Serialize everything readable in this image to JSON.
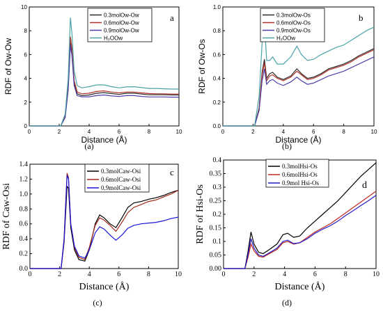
{
  "captions": [
    "(a)",
    "(b)",
    "(c)",
    "(d)"
  ],
  "chart_data": [
    {
      "type": "line",
      "panel_letter": "a",
      "xlabel": "Distance (Å)",
      "ylabel": "RDF of Ow-Ow",
      "xlim": [
        0,
        10
      ],
      "ylim": [
        0,
        10
      ],
      "xticks": [
        0,
        2,
        4,
        6,
        8,
        10
      ],
      "yticks": [
        0,
        2,
        4,
        6,
        8,
        10
      ],
      "legend_position": "top-right",
      "series": [
        {
          "name": "0.3molOw-Ow",
          "color": "#2b2b2b",
          "x": [
            0,
            2.1,
            2.4,
            2.6,
            2.75,
            2.85,
            3.0,
            3.2,
            3.5,
            4.0,
            4.5,
            5.0,
            5.5,
            6.0,
            6.5,
            7.0,
            7.5,
            8.0,
            8.5,
            9.0,
            9.5,
            10
          ],
          "y": [
            0,
            0,
            0.8,
            3.2,
            7.0,
            6.2,
            3.6,
            2.7,
            2.55,
            2.6,
            2.75,
            2.8,
            2.72,
            2.65,
            2.75,
            2.75,
            2.68,
            2.62,
            2.62,
            2.62,
            2.6,
            2.6
          ]
        },
        {
          "name": "0.6molOw-Ow",
          "color": "#b03028",
          "x": [
            0,
            2.1,
            2.4,
            2.6,
            2.75,
            2.85,
            3.0,
            3.2,
            3.5,
            4.0,
            4.5,
            5.0,
            5.5,
            6.0,
            6.5,
            7.0,
            7.5,
            8.0,
            8.5,
            9.0,
            9.5,
            10
          ],
          "y": [
            0,
            0,
            0.8,
            3.4,
            7.5,
            6.5,
            3.8,
            2.85,
            2.7,
            2.75,
            2.9,
            2.95,
            2.85,
            2.78,
            2.85,
            2.85,
            2.78,
            2.72,
            2.7,
            2.7,
            2.68,
            2.68
          ]
        },
        {
          "name": "0.9molOw-Ow",
          "color": "#4a3fa8",
          "x": [
            0,
            2.1,
            2.4,
            2.6,
            2.75,
            2.85,
            3.0,
            3.2,
            3.5,
            4.0,
            4.5,
            5.0,
            5.5,
            6.0,
            6.5,
            7.0,
            7.5,
            8.0,
            8.5,
            9.0,
            9.5,
            10
          ],
          "y": [
            0,
            0,
            0.7,
            3.0,
            6.8,
            5.9,
            3.4,
            2.55,
            2.45,
            2.45,
            2.55,
            2.6,
            2.52,
            2.48,
            2.55,
            2.55,
            2.48,
            2.44,
            2.44,
            2.44,
            2.42,
            2.42
          ]
        },
        {
          "name": "H₂OOw",
          "color": "#4aa3a6",
          "x": [
            0,
            2.1,
            2.4,
            2.6,
            2.75,
            2.85,
            3.0,
            3.2,
            3.5,
            4.0,
            4.5,
            5.0,
            5.5,
            6.0,
            6.5,
            7.0,
            7.5,
            8.0,
            8.5,
            9.0,
            9.5,
            10
          ],
          "y": [
            0,
            0,
            1.0,
            4.0,
            9.1,
            7.8,
            4.6,
            3.4,
            3.2,
            3.3,
            3.45,
            3.45,
            3.3,
            3.2,
            3.28,
            3.3,
            3.22,
            3.15,
            3.15,
            3.12,
            3.1,
            3.1
          ]
        }
      ]
    },
    {
      "type": "line",
      "panel_letter": "b",
      "xlabel": "Distance (Å)",
      "ylabel": "RDF of Ow-Os",
      "xlim": [
        0,
        10
      ],
      "ylim": [
        0,
        1.0
      ],
      "xticks": [
        0,
        2,
        4,
        6,
        8,
        10
      ],
      "yticks": [
        0,
        0.2,
        0.4,
        0.6,
        0.8,
        1.0
      ],
      "legend_position": "top-left",
      "series": [
        {
          "name": "0.3molOw-Os",
          "color": "#2b2b2b",
          "x": [
            0,
            2.1,
            2.4,
            2.6,
            2.75,
            2.9,
            3.1,
            3.3,
            3.6,
            4.0,
            4.5,
            4.9,
            5.2,
            5.6,
            6.0,
            6.5,
            7.0,
            7.5,
            8.0,
            8.5,
            9.0,
            9.5,
            10
          ],
          "y": [
            0,
            0,
            0.15,
            0.45,
            0.56,
            0.4,
            0.44,
            0.45,
            0.41,
            0.39,
            0.42,
            0.48,
            0.44,
            0.4,
            0.41,
            0.44,
            0.48,
            0.5,
            0.52,
            0.55,
            0.59,
            0.62,
            0.65
          ]
        },
        {
          "name": "0.6molOw-Os",
          "color": "#b03028",
          "x": [
            0,
            2.1,
            2.4,
            2.6,
            2.75,
            2.9,
            3.1,
            3.3,
            3.6,
            4.0,
            4.5,
            4.9,
            5.2,
            5.6,
            6.0,
            6.5,
            7.0,
            7.5,
            8.0,
            8.5,
            9.0,
            9.5,
            10
          ],
          "y": [
            0,
            0,
            0.14,
            0.43,
            0.53,
            0.38,
            0.42,
            0.43,
            0.4,
            0.38,
            0.41,
            0.46,
            0.43,
            0.39,
            0.4,
            0.43,
            0.47,
            0.49,
            0.51,
            0.54,
            0.58,
            0.61,
            0.64
          ]
        },
        {
          "name": "0.9molOw-Os",
          "color": "#4a3fa8",
          "x": [
            0,
            2.1,
            2.4,
            2.6,
            2.75,
            2.9,
            3.1,
            3.3,
            3.6,
            4.0,
            4.5,
            4.9,
            5.2,
            5.6,
            6.0,
            6.5,
            7.0,
            7.5,
            8.0,
            8.5,
            9.0,
            9.5,
            10
          ],
          "y": [
            0,
            0,
            0.13,
            0.38,
            0.48,
            0.35,
            0.38,
            0.39,
            0.36,
            0.34,
            0.37,
            0.41,
            0.38,
            0.35,
            0.36,
            0.39,
            0.42,
            0.44,
            0.46,
            0.49,
            0.52,
            0.55,
            0.58
          ]
        },
        {
          "name": "H₂OOw",
          "color": "#4aa3a6",
          "x": [
            0,
            2.1,
            2.4,
            2.6,
            2.75,
            2.9,
            3.1,
            3.3,
            3.6,
            4.0,
            4.5,
            4.9,
            5.2,
            5.6,
            6.0,
            6.5,
            7.0,
            7.5,
            8.0,
            8.5,
            9.0,
            9.5,
            10
          ],
          "y": [
            0,
            0,
            0.25,
            0.7,
            0.88,
            0.55,
            0.55,
            0.58,
            0.52,
            0.52,
            0.58,
            0.67,
            0.6,
            0.55,
            0.56,
            0.6,
            0.63,
            0.66,
            0.68,
            0.72,
            0.76,
            0.8,
            0.83
          ]
        }
      ]
    },
    {
      "type": "line",
      "panel_letter": "c",
      "xlabel": "Distance (Å)",
      "ylabel": "RDF of Caw-Osi",
      "xlim": [
        0,
        10
      ],
      "ylim": [
        0,
        1.4
      ],
      "xticks": [
        0,
        2,
        4,
        6,
        8,
        10
      ],
      "yticks": [
        0,
        0.2,
        0.4,
        0.6,
        0.8,
        1.0,
        1.2,
        1.4
      ],
      "legend_position": "top-right",
      "series": [
        {
          "name": "0.3molCaw-Osi",
          "color": "#000000",
          "x": [
            0,
            2.1,
            2.3,
            2.5,
            2.6,
            2.75,
            3.0,
            3.3,
            3.7,
            4.0,
            4.4,
            4.7,
            5.0,
            5.4,
            5.8,
            6.2,
            6.6,
            7.0,
            7.5,
            8.0,
            8.5,
            9.0,
            9.5,
            10
          ],
          "y": [
            0,
            0,
            0.35,
            1.1,
            1.08,
            0.55,
            0.25,
            0.12,
            0.1,
            0.25,
            0.6,
            0.72,
            0.68,
            0.6,
            0.55,
            0.68,
            0.82,
            0.88,
            0.9,
            0.93,
            0.95,
            0.98,
            1.02,
            1.05
          ]
        },
        {
          "name": "0.6molCaw-Osi",
          "color": "#a02818",
          "x": [
            0,
            2.1,
            2.3,
            2.5,
            2.6,
            2.75,
            3.0,
            3.3,
            3.7,
            4.0,
            4.4,
            4.7,
            5.0,
            5.4,
            5.8,
            6.2,
            6.6,
            7.0,
            7.5,
            8.0,
            8.5,
            9.0,
            9.5,
            10
          ],
          "y": [
            0,
            0,
            0.4,
            1.28,
            1.22,
            0.6,
            0.28,
            0.15,
            0.12,
            0.28,
            0.58,
            0.68,
            0.65,
            0.58,
            0.5,
            0.62,
            0.75,
            0.82,
            0.86,
            0.9,
            0.92,
            0.96,
            1.0,
            1.05
          ]
        },
        {
          "name": "0.9molCaw-Osi",
          "color": "#1a14d8",
          "x": [
            0,
            2.1,
            2.3,
            2.5,
            2.6,
            2.75,
            3.0,
            3.3,
            3.7,
            4.0,
            4.4,
            4.7,
            5.0,
            5.4,
            5.8,
            6.2,
            6.6,
            7.0,
            7.5,
            8.0,
            8.5,
            9.0,
            9.5,
            10
          ],
          "y": [
            0,
            0,
            0.38,
            1.25,
            1.2,
            0.6,
            0.3,
            0.17,
            0.14,
            0.25,
            0.48,
            0.56,
            0.53,
            0.45,
            0.38,
            0.45,
            0.54,
            0.58,
            0.6,
            0.61,
            0.62,
            0.64,
            0.67,
            0.69
          ]
        }
      ]
    },
    {
      "type": "line",
      "panel_letter": "d",
      "xlabel": "Distance (Å)",
      "ylabel": "RDF of Hsi-Os",
      "xlim": [
        0,
        10
      ],
      "ylim": [
        0,
        0.4
      ],
      "xticks": [
        0,
        2,
        4,
        6,
        8,
        10
      ],
      "yticks": [
        0,
        0.05,
        0.1,
        0.15,
        0.2,
        0.25,
        0.3,
        0.35,
        0.4
      ],
      "legend_position": "top-left",
      "series": [
        {
          "name": "0.3molHsi-Os",
          "color": "#000000",
          "x": [
            0,
            1.4,
            1.6,
            1.8,
            2.0,
            2.3,
            2.6,
            3.0,
            3.5,
            3.9,
            4.2,
            4.6,
            5.0,
            5.5,
            6.0,
            6.5,
            7.0,
            7.5,
            8.0,
            8.5,
            9.0,
            9.5,
            10
          ],
          "y": [
            0,
            0,
            0.06,
            0.135,
            0.09,
            0.06,
            0.055,
            0.07,
            0.09,
            0.125,
            0.13,
            0.115,
            0.12,
            0.15,
            0.175,
            0.2,
            0.225,
            0.25,
            0.28,
            0.31,
            0.34,
            0.365,
            0.39
          ]
        },
        {
          "name": "0.6molHsi-Os",
          "color": "#c02820",
          "x": [
            0,
            1.4,
            1.6,
            1.8,
            2.0,
            2.3,
            2.6,
            3.0,
            3.5,
            3.9,
            4.2,
            4.6,
            5.0,
            5.5,
            6.0,
            6.5,
            7.0,
            7.5,
            8.0,
            8.5,
            9.0,
            9.5,
            10
          ],
          "y": [
            0,
            0,
            0.04,
            0.09,
            0.065,
            0.045,
            0.042,
            0.055,
            0.07,
            0.095,
            0.1,
            0.09,
            0.095,
            0.115,
            0.135,
            0.15,
            0.165,
            0.185,
            0.205,
            0.225,
            0.245,
            0.265,
            0.285
          ]
        },
        {
          "name": "0.9mol Hsi-Os",
          "color": "#2018c8",
          "x": [
            0,
            1.4,
            1.6,
            1.8,
            2.0,
            2.3,
            2.6,
            3.0,
            3.5,
            3.9,
            4.2,
            4.6,
            5.0,
            5.5,
            6.0,
            6.5,
            7.0,
            7.5,
            8.0,
            8.5,
            9.0,
            9.5,
            10
          ],
          "y": [
            0,
            0,
            0.05,
            0.11,
            0.075,
            0.05,
            0.045,
            0.058,
            0.075,
            0.1,
            0.105,
            0.092,
            0.095,
            0.11,
            0.13,
            0.145,
            0.158,
            0.175,
            0.195,
            0.213,
            0.232,
            0.25,
            0.27
          ]
        }
      ]
    }
  ]
}
